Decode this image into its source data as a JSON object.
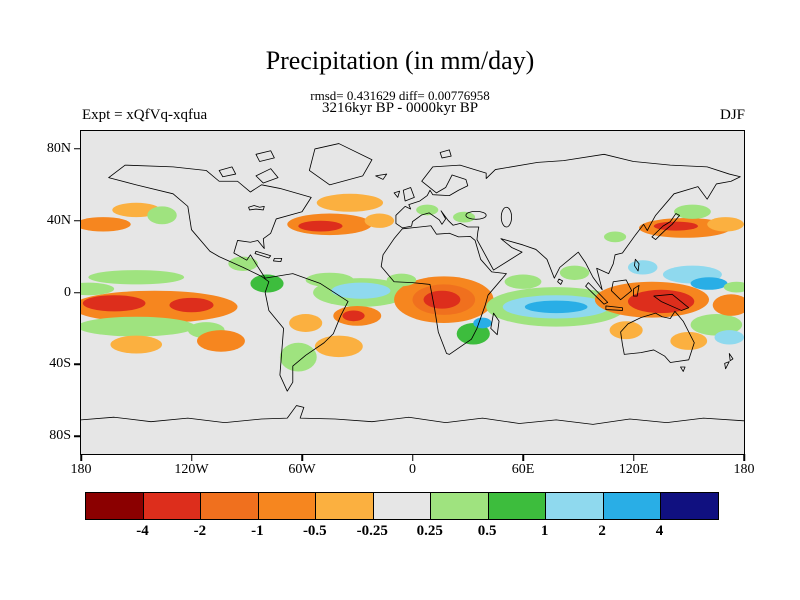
{
  "header": {
    "title": "Precipitation (in mm/day)",
    "stats": "rmsd= 0.431629 diff= 0.00776958",
    "period": "3216kyr BP - 0000kyr BP",
    "experiment": "Expt = xQfVq-xqfua",
    "season": "DJF"
  },
  "axes": {
    "lat_ticks": [
      {
        "label": "80N",
        "lat": 80
      },
      {
        "label": "40N",
        "lat": 40
      },
      {
        "label": "0",
        "lat": 0
      },
      {
        "label": "40S",
        "lat": -40
      },
      {
        "label": "80S",
        "lat": -80
      }
    ],
    "lon_ticks": [
      {
        "label": "180",
        "lon": -180
      },
      {
        "label": "120W",
        "lon": -120
      },
      {
        "label": "60W",
        "lon": -60
      },
      {
        "label": "0",
        "lon": 0
      },
      {
        "label": "60E",
        "lon": 60
      },
      {
        "label": "120E",
        "lon": 120
      },
      {
        "label": "180",
        "lon": 180
      }
    ]
  },
  "colorbar": {
    "colors": [
      "#8b0000",
      "#dd2e1c",
      "#f0701e",
      "#f6861f",
      "#fbb040",
      "#e6e6e6",
      "#9fe37f",
      "#3dbd3d",
      "#8fd9ee",
      "#29aee6",
      "#101080"
    ],
    "tick_labels": [
      "-4",
      "-2",
      "-1",
      "-0.5",
      "-0.25",
      "0.25",
      "0.5",
      "1",
      "2",
      "4"
    ]
  },
  "map": {
    "background": "#e6e6e6",
    "coastline_color": "#000000"
  },
  "chart_data": {
    "type": "heatmap",
    "title": "Precipitation (in mm/day)",
    "subtitle": "3216kyr BP - 0000kyr BP",
    "stats": {
      "rmsd": 0.431629,
      "diff": 0.00776958
    },
    "experiment": "xQfVq-xqfua",
    "season": "DJF",
    "projection": "global equirectangular",
    "lon_range": [
      -180,
      180
    ],
    "lat_range": [
      -90,
      90
    ],
    "units": "mm/day",
    "contour_levels": [
      -4,
      -2,
      -1,
      -0.5,
      -0.25,
      0.25,
      0.5,
      1,
      2,
      4
    ],
    "anomaly_format": [
      "lon",
      "lat",
      "rx_deg",
      "ry_deg",
      "color_index"
    ],
    "anomalies": [
      [
        -140,
        -8,
        45,
        9,
        3
      ],
      [
        -150,
        -19,
        32,
        5.5,
        6
      ],
      [
        -150,
        8.5,
        26,
        4,
        6
      ],
      [
        -176,
        2,
        14,
        3.5,
        6
      ],
      [
        -112,
        -21,
        10,
        4.5,
        6
      ],
      [
        -150,
        -29,
        14,
        5,
        4
      ],
      [
        -104,
        -27,
        13,
        6,
        3
      ],
      [
        -168,
        38,
        15,
        4,
        3
      ],
      [
        -150,
        46,
        13,
        4,
        4
      ],
      [
        -136,
        43,
        8,
        5,
        6
      ],
      [
        -92,
        16,
        8,
        4,
        6
      ],
      [
        -79,
        5,
        9,
        5,
        7
      ],
      [
        -45,
        7,
        13,
        4,
        6
      ],
      [
        -45,
        38,
        23,
        6,
        3
      ],
      [
        -34,
        50,
        18,
        5,
        4
      ],
      [
        -18,
        40,
        8,
        4,
        4
      ],
      [
        -28,
        0,
        26,
        8,
        6
      ],
      [
        -28,
        1,
        16,
        4.5,
        8
      ],
      [
        -30,
        -13,
        13,
        5.5,
        3
      ],
      [
        -62,
        -36,
        10,
        8,
        6
      ],
      [
        -40,
        -30,
        13,
        6,
        4
      ],
      [
        -58,
        -17,
        9,
        5,
        4
      ],
      [
        8,
        46,
        6,
        3,
        6
      ],
      [
        28,
        42,
        6,
        3,
        6
      ],
      [
        17,
        -4,
        27,
        13,
        3
      ],
      [
        17,
        -4,
        17,
        8.5,
        2
      ],
      [
        33,
        -23,
        9,
        6,
        7
      ],
      [
        38,
        -17,
        5,
        3,
        9
      ],
      [
        -6,
        7,
        8,
        3.5,
        6
      ],
      [
        60,
        6,
        10,
        4,
        6
      ],
      [
        88,
        11,
        8,
        4,
        6
      ],
      [
        78,
        -8,
        38,
        11,
        6
      ],
      [
        78,
        -8,
        29,
        6.5,
        8
      ],
      [
        78,
        -8,
        17,
        3.5,
        9
      ],
      [
        130,
        -4,
        31,
        10,
        3
      ],
      [
        125,
        14,
        8,
        4,
        8
      ],
      [
        152,
        10,
        16,
        5,
        8
      ],
      [
        161,
        5,
        10,
        3.5,
        9
      ],
      [
        165,
        -18,
        14,
        6,
        6
      ],
      [
        172,
        -25,
        8,
        4,
        8
      ],
      [
        150,
        -27,
        10,
        5,
        4
      ],
      [
        116,
        -21,
        9,
        5,
        4
      ],
      [
        148,
        36,
        25,
        5.5,
        3
      ],
      [
        170,
        38,
        10,
        4,
        4
      ],
      [
        152,
        45,
        10,
        4,
        6
      ],
      [
        110,
        31,
        6,
        3,
        6
      ],
      [
        173,
        -7,
        10,
        6,
        3
      ],
      [
        176,
        3,
        7,
        3,
        6
      ],
      [
        -162,
        -6,
        17,
        4.5,
        1
      ],
      [
        -120,
        -7,
        12,
        4,
        1
      ],
      [
        -50,
        37,
        12,
        3,
        1
      ],
      [
        -32,
        -13,
        6,
        3,
        1
      ],
      [
        16,
        -4,
        10,
        5,
        1
      ],
      [
        135,
        -5,
        18,
        6.5,
        1
      ],
      [
        143,
        37,
        12,
        2.5,
        1
      ]
    ]
  }
}
